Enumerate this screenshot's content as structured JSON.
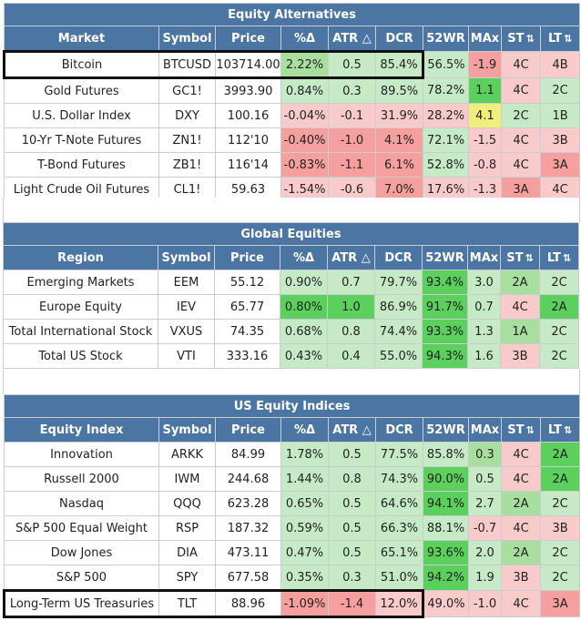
{
  "colors": {
    "header_bg": "#4b76a3",
    "g1": "#c6e9c6",
    "g2": "#a8df9f",
    "g3": "#5cd05c",
    "r1": "#f9caca",
    "r2": "#f59f9f",
    "y": "#f2ee7e",
    "w": "#ffffff"
  },
  "columns": {
    "symbol": "Symbol",
    "price": "Price",
    "pct": "%Δ",
    "atr": "ATR △",
    "dcr": "DCR",
    "wr52": "52WR",
    "max": "MAx",
    "st": "ST",
    "lt": "LT",
    "sort_glyph": "⇅"
  },
  "sections": [
    {
      "title": "Equity Alternatives",
      "first_col": "Market",
      "rows": [
        {
          "name": "Bitcoin",
          "symbol": "BTCUSD",
          "price": "103714.00",
          "pct": "2.22%",
          "atr": "0.5",
          "dcr": "85.4%",
          "wr52": "56.5%",
          "max": "-1.9",
          "st": "4C",
          "lt": "4B",
          "bg": [
            "w",
            "w",
            "w",
            "g2",
            "g1",
            "g1",
            "g1",
            "r2",
            "r1",
            "r1"
          ],
          "highlight": true
        },
        {
          "name": "Gold Futures",
          "symbol": "GC1!",
          "price": "3993.90",
          "pct": "0.84%",
          "atr": "0.3",
          "dcr": "89.5%",
          "wr52": "78.2%",
          "max": "1.1",
          "st": "4C",
          "lt": "2C",
          "bg": [
            "w",
            "w",
            "w",
            "g1",
            "g1",
            "g1",
            "g1",
            "g3",
            "r1",
            "g1"
          ],
          "highlight": false
        },
        {
          "name": "U.S. Dollar Index",
          "symbol": "DXY",
          "price": "100.16",
          "pct": "-0.04%",
          "atr": "-0.1",
          "dcr": "31.9%",
          "wr52": "28.2%",
          "max": "4.1",
          "st": "2C",
          "lt": "1B",
          "bg": [
            "w",
            "w",
            "w",
            "r1",
            "r1",
            "r1",
            "r1",
            "y",
            "g1",
            "g1"
          ],
          "highlight": false
        },
        {
          "name": "10-Yr T-Note Futures",
          "symbol": "ZN1!",
          "price": "112'10",
          "pct": "-0.40%",
          "atr": "-1.0",
          "dcr": "4.1%",
          "wr52": "72.1%",
          "max": "-1.5",
          "st": "4C",
          "lt": "3B",
          "bg": [
            "w",
            "w",
            "w",
            "r2",
            "r2",
            "r2",
            "g1",
            "r1",
            "r1",
            "r1"
          ],
          "highlight": false
        },
        {
          "name": "T-Bond Futures",
          "symbol": "ZB1!",
          "price": "116'14",
          "pct": "-0.83%",
          "atr": "-1.1",
          "dcr": "6.1%",
          "wr52": "52.8%",
          "max": "-0.8",
          "st": "4C",
          "lt": "3A",
          "bg": [
            "w",
            "w",
            "w",
            "r2",
            "r2",
            "r2",
            "g1",
            "r1",
            "r1",
            "r2"
          ],
          "highlight": false
        },
        {
          "name": "Light Crude Oil Futures",
          "symbol": "CL1!",
          "price": "59.63",
          "pct": "-1.54%",
          "atr": "-0.6",
          "dcr": "7.0%",
          "wr52": "17.6%",
          "max": "-1.3",
          "st": "3A",
          "lt": "4C",
          "bg": [
            "w",
            "w",
            "w",
            "r1",
            "r1",
            "r2",
            "r1",
            "r1",
            "r2",
            "r1"
          ],
          "highlight": false
        }
      ]
    },
    {
      "title": "Global Equities",
      "first_col": "Region",
      "rows": [
        {
          "name": "Emerging Markets",
          "symbol": "EEM",
          "price": "55.12",
          "pct": "0.90%",
          "atr": "0.7",
          "dcr": "79.7%",
          "wr52": "93.4%",
          "max": "3.0",
          "st": "2A",
          "lt": "2C",
          "bg": [
            "w",
            "w",
            "w",
            "g1",
            "g1",
            "g1",
            "g3",
            "g1",
            "g2",
            "g1"
          ],
          "highlight": false
        },
        {
          "name": "Europe Equity",
          "symbol": "IEV",
          "price": "65.77",
          "pct": "0.80%",
          "atr": "1.0",
          "dcr": "86.9%",
          "wr52": "91.7%",
          "max": "0.7",
          "st": "4C",
          "lt": "2A",
          "bg": [
            "w",
            "w",
            "w",
            "g3",
            "g3",
            "g1",
            "g3",
            "g1",
            "r1",
            "g3"
          ],
          "highlight": false
        },
        {
          "name": "Total International Stock",
          "symbol": "VXUS",
          "price": "74.35",
          "pct": "0.68%",
          "atr": "0.8",
          "dcr": "74.4%",
          "wr52": "93.3%",
          "max": "1.3",
          "st": "1A",
          "lt": "2C",
          "bg": [
            "w",
            "w",
            "w",
            "g1",
            "g1",
            "g1",
            "g3",
            "g1",
            "g2",
            "g1"
          ],
          "highlight": false
        },
        {
          "name": "Total US Stock",
          "symbol": "VTI",
          "price": "333.16",
          "pct": "0.43%",
          "atr": "0.4",
          "dcr": "55.0%",
          "wr52": "94.3%",
          "max": "1.6",
          "st": "3B",
          "lt": "2C",
          "bg": [
            "w",
            "w",
            "w",
            "g1",
            "g1",
            "g1",
            "g3",
            "g1",
            "r1",
            "g1"
          ],
          "highlight": false
        }
      ]
    },
    {
      "title": "US Equity Indices",
      "first_col": "Equity Index",
      "rows": [
        {
          "name": "Innovation",
          "symbol": "ARKK",
          "price": "84.99",
          "pct": "1.78%",
          "atr": "0.5",
          "dcr": "77.5%",
          "wr52": "85.8%",
          "max": "0.3",
          "st": "4C",
          "lt": "2A",
          "bg": [
            "w",
            "w",
            "w",
            "g1",
            "g1",
            "g1",
            "g1",
            "g2",
            "r1",
            "g3"
          ],
          "highlight": false
        },
        {
          "name": "Russell 2000",
          "symbol": "IWM",
          "price": "244.68",
          "pct": "1.44%",
          "atr": "0.8",
          "dcr": "74.3%",
          "wr52": "90.0%",
          "max": "0.5",
          "st": "4C",
          "lt": "2A",
          "bg": [
            "w",
            "w",
            "w",
            "g1",
            "g1",
            "g1",
            "g3",
            "g1",
            "r1",
            "g3"
          ],
          "highlight": false
        },
        {
          "name": "Nasdaq",
          "symbol": "QQQ",
          "price": "623.28",
          "pct": "0.65%",
          "atr": "0.5",
          "dcr": "64.6%",
          "wr52": "94.1%",
          "max": "2.7",
          "st": "2A",
          "lt": "2C",
          "bg": [
            "w",
            "w",
            "w",
            "g1",
            "g1",
            "g1",
            "g3",
            "g1",
            "g2",
            "g1"
          ],
          "highlight": false
        },
        {
          "name": "S&P 500 Equal Weight",
          "symbol": "RSP",
          "price": "187.32",
          "pct": "0.59%",
          "atr": "0.5",
          "dcr": "66.3%",
          "wr52": "88.1%",
          "max": "-0.7",
          "st": "4C",
          "lt": "3B",
          "bg": [
            "w",
            "w",
            "w",
            "g1",
            "g1",
            "g1",
            "g1",
            "r1",
            "r1",
            "r1"
          ],
          "highlight": false
        },
        {
          "name": "Dow Jones",
          "symbol": "DIA",
          "price": "473.11",
          "pct": "0.47%",
          "atr": "0.5",
          "dcr": "65.1%",
          "wr52": "93.6%",
          "max": "2.0",
          "st": "2A",
          "lt": "2C",
          "bg": [
            "w",
            "w",
            "w",
            "g1",
            "g1",
            "g1",
            "g3",
            "g1",
            "g2",
            "g1"
          ],
          "highlight": false
        },
        {
          "name": "S&P 500",
          "symbol": "SPY",
          "price": "677.58",
          "pct": "0.35%",
          "atr": "0.3",
          "dcr": "51.0%",
          "wr52": "94.2%",
          "max": "1.9",
          "st": "3B",
          "lt": "2C",
          "bg": [
            "w",
            "w",
            "w",
            "g1",
            "g1",
            "g1",
            "g3",
            "g1",
            "r1",
            "g1"
          ],
          "highlight": false
        },
        {
          "name": "Long-Term US Treasuries",
          "symbol": "TLT",
          "price": "88.96",
          "pct": "-1.09%",
          "atr": "-1.4",
          "dcr": "12.0%",
          "wr52": "49.0%",
          "max": "-1.0",
          "st": "4C",
          "lt": "3A",
          "bg": [
            "w",
            "w",
            "w",
            "r2",
            "r2",
            "r1",
            "r1",
            "r1",
            "r1",
            "r2"
          ],
          "highlight": true
        }
      ]
    }
  ]
}
